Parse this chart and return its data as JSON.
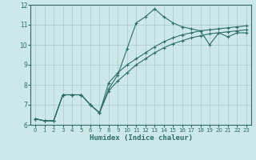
{
  "xlabel": "Humidex (Indice chaleur)",
  "bg_color": "#cce8e8",
  "grid_color": "#aacccc",
  "line_color": "#2e6e64",
  "xlim": [
    -0.5,
    23.5
  ],
  "ylim": [
    6,
    12
  ],
  "yticks": [
    6,
    7,
    8,
    9,
    10,
    11,
    12
  ],
  "xticks": [
    0,
    1,
    2,
    3,
    4,
    5,
    6,
    7,
    8,
    9,
    10,
    11,
    12,
    13,
    14,
    15,
    16,
    17,
    18,
    19,
    20,
    21,
    22,
    23
  ],
  "series": [
    {
      "x": [
        0,
        1,
        2,
        3,
        4,
        5,
        6,
        7,
        8,
        9,
        10,
        11,
        12,
        13,
        14,
        15,
        16,
        17,
        18,
        19,
        20,
        21,
        22,
        23
      ],
      "y": [
        6.3,
        6.2,
        6.2,
        7.5,
        7.5,
        7.5,
        7.0,
        6.6,
        7.8,
        8.5,
        9.8,
        11.1,
        11.4,
        11.8,
        11.4,
        11.1,
        10.9,
        10.8,
        10.7,
        10.0,
        10.6,
        10.4,
        10.6,
        10.6
      ]
    },
    {
      "x": [
        0,
        1,
        2,
        3,
        4,
        5,
        6,
        7,
        8,
        9,
        10,
        11,
        12,
        13,
        14,
        15,
        16,
        17,
        18,
        19,
        20,
        21,
        22,
        23
      ],
      "y": [
        6.3,
        6.2,
        6.2,
        7.5,
        7.5,
        7.5,
        7.0,
        6.6,
        8.1,
        8.6,
        9.0,
        9.3,
        9.6,
        9.9,
        10.15,
        10.35,
        10.5,
        10.6,
        10.7,
        10.75,
        10.8,
        10.85,
        10.9,
        10.95
      ]
    },
    {
      "x": [
        0,
        1,
        2,
        3,
        4,
        5,
        6,
        7,
        8,
        9,
        10,
        11,
        12,
        13,
        14,
        15,
        16,
        17,
        18,
        19,
        20,
        21,
        22,
        23
      ],
      "y": [
        6.3,
        6.2,
        6.2,
        7.5,
        7.5,
        7.5,
        7.0,
        6.6,
        7.7,
        8.2,
        8.6,
        9.0,
        9.3,
        9.6,
        9.85,
        10.05,
        10.2,
        10.35,
        10.45,
        10.55,
        10.6,
        10.65,
        10.7,
        10.75
      ]
    }
  ]
}
